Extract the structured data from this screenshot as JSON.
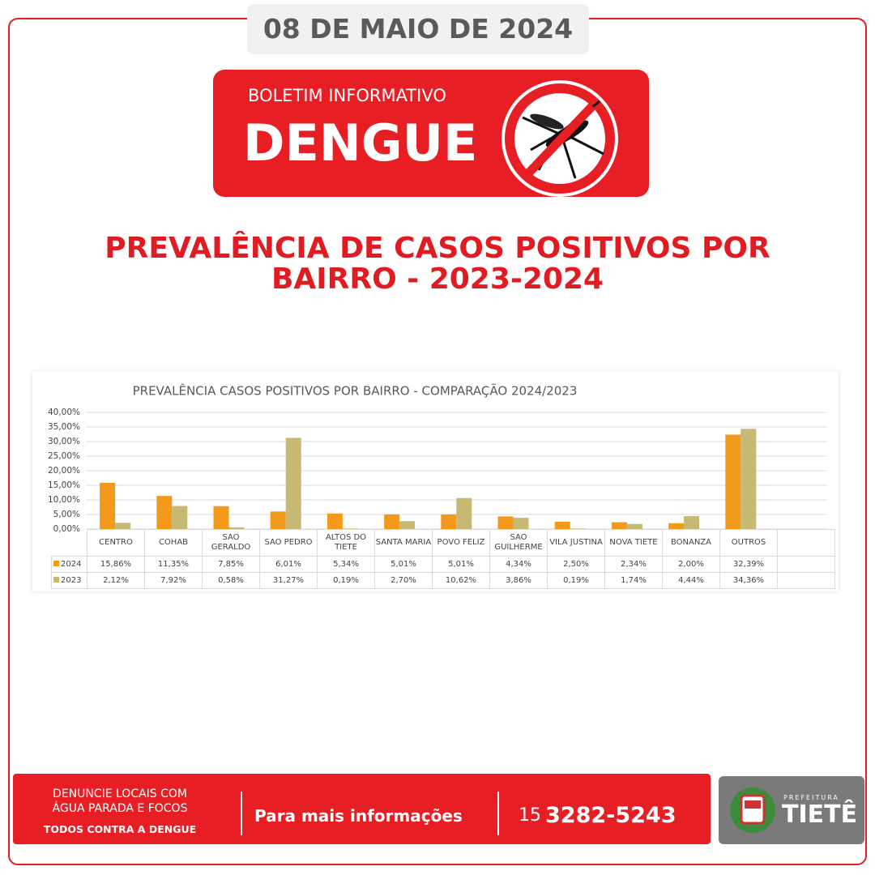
{
  "header": {
    "date": "08 DE MAIO DE 2024",
    "subtitle": "BOLETIM INFORMATIVO",
    "title": "DENGUE"
  },
  "headline": "PREVALÊNCIA DE CASOS POSITIVOS POR BAIRRO - 2023-2024",
  "chart_data": {
    "type": "bar",
    "title": "PREVALÊNCIA CASOS POSITIVOS POR BAIRRO - COMPARAÇÃO 2024/2023",
    "categories": [
      "CENTRO",
      "COHAB",
      "SAO GERALDO",
      "SAO PEDRO",
      "ALTOS DO TIETE",
      "SANTA MARIA",
      "POVO FELIZ",
      "SAO GUILHERME",
      "VILA JUSTINA",
      "NOVA TIETE",
      "BONANZA",
      "OUTROS"
    ],
    "series": [
      {
        "name": "2024",
        "color": "#f39a1c",
        "values": [
          15.86,
          11.35,
          7.85,
          6.01,
          5.34,
          5.01,
          5.01,
          4.34,
          2.5,
          2.34,
          2.0,
          32.39
        ],
        "value_labels": [
          "15,86%",
          "11,35%",
          "7,85%",
          "6,01%",
          "5,34%",
          "5,01%",
          "5,01%",
          "4,34%",
          "2,50%",
          "2,34%",
          "2,00%",
          "32,39%"
        ]
      },
      {
        "name": "2023",
        "color": "#c5b973",
        "values": [
          2.12,
          7.92,
          0.58,
          31.27,
          0.19,
          2.7,
          10.62,
          3.86,
          0.19,
          1.74,
          4.44,
          34.36
        ],
        "value_labels": [
          "2,12%",
          "7,92%",
          "0,58%",
          "31,27%",
          "0,19%",
          "2,70%",
          "10,62%",
          "3,86%",
          "0,19%",
          "1,74%",
          "4,44%",
          "34,36%"
        ]
      }
    ],
    "ylim": [
      0,
      40
    ],
    "yticks": [
      {
        "value": 0,
        "label": "0,00%"
      },
      {
        "value": 5,
        "label": "5,00%"
      },
      {
        "value": 10,
        "label": "10,00%"
      },
      {
        "value": 15,
        "label": "15,00%"
      },
      {
        "value": 20,
        "label": "20,00%"
      },
      {
        "value": 25,
        "label": "25,00%"
      },
      {
        "value": 30,
        "label": "30,00%"
      },
      {
        "value": 35,
        "label": "35,00%"
      },
      {
        "value": 40,
        "label": "40,00%"
      }
    ],
    "grid": true
  },
  "footer": {
    "notice_lines": [
      "DENUNCIE LOCAIS COM",
      "ÁGUA PARADA E FOCOS"
    ],
    "slogan": "TODOS CONTRA A DENGUE",
    "info": "Para mais informações",
    "area_code": "15",
    "phone": "3282-5243",
    "logo_small": "PREFEITURA",
    "logo": "TIETÊ"
  }
}
